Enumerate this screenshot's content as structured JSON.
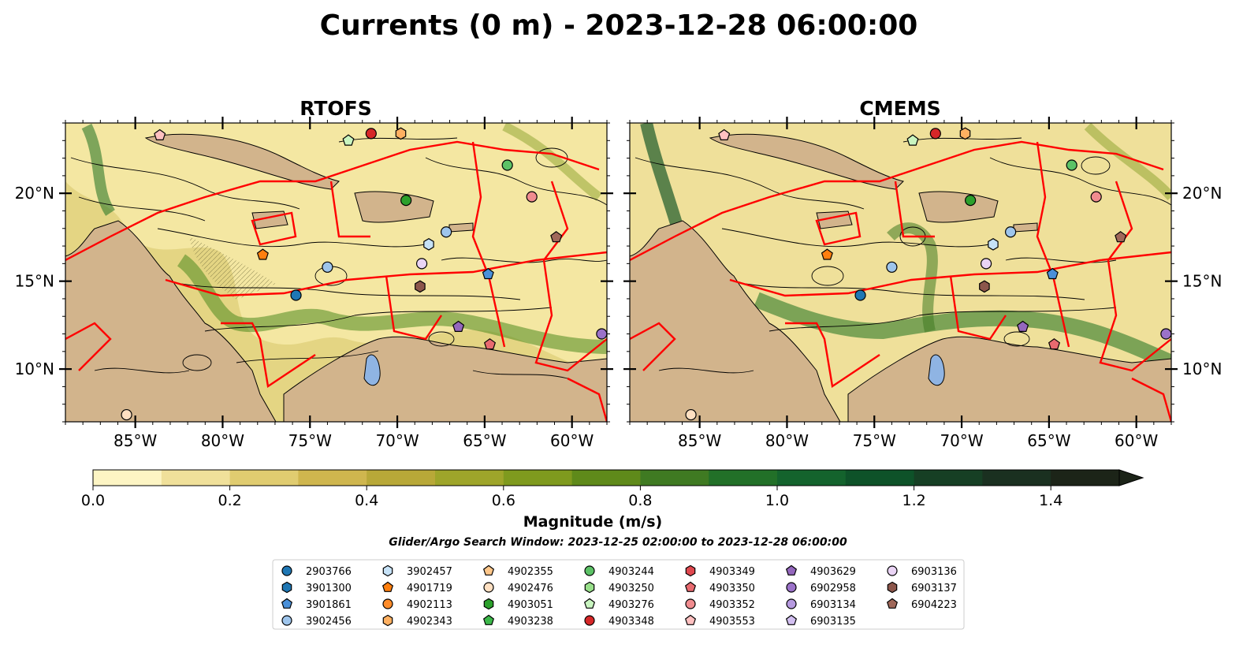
{
  "title": "Currents (0 m) - 2023-12-28 06:00:00",
  "panels": [
    {
      "title": "RTOFS"
    },
    {
      "title": "CMEMS"
    }
  ],
  "axes": {
    "x_ticks": [
      "85°W",
      "80°W",
      "75°W",
      "70°W",
      "65°W",
      "60°W"
    ],
    "y_ticks": [
      "10°N",
      "15°N",
      "20°N"
    ],
    "lon_range": [
      -89,
      -58
    ],
    "lat_range": [
      7,
      24
    ],
    "x_tick_values": [
      -85,
      -80,
      -75,
      -70,
      -65,
      -60
    ],
    "y_tick_values": [
      10,
      15,
      20
    ]
  },
  "colorbar": {
    "label": "Magnitude (m/s)",
    "ticks": [
      "0.0",
      "0.2",
      "0.4",
      "0.6",
      "0.8",
      "1.0",
      "1.2",
      "1.4"
    ],
    "tick_values": [
      0.0,
      0.2,
      0.4,
      0.6,
      0.8,
      1.0,
      1.2,
      1.4
    ],
    "range": [
      0.0,
      1.5
    ],
    "extend": "max",
    "colors": [
      "#fdf5c4",
      "#f0e09a",
      "#e0cc70",
      "#cfb64e",
      "#b8a838",
      "#9ea52a",
      "#7f9a1e",
      "#5f8a1a",
      "#3f7a22",
      "#227028",
      "#14632d",
      "#0e5229",
      "#163f24",
      "#1a3020",
      "#1c2418"
    ]
  },
  "search_window": "Glider/Argo Search Window: 2023-12-25 02:00:00 to 2023-12-28 06:00:00",
  "map_colors": {
    "land": "#d2b48c",
    "lakes": "#8fb4e3",
    "eez": "#ff0000",
    "streamlines": "#000000"
  },
  "chart_data": {
    "type": "scatter",
    "title": "Currents (0 m) - 2023-12-28 06:00:00",
    "xlabel": "",
    "ylabel": "",
    "xlim": [
      -89,
      -58
    ],
    "ylim": [
      7,
      24
    ],
    "grid": false,
    "legend_placement": "bottom-center",
    "series": [
      {
        "name": "2903766",
        "marker": "circle",
        "color": "#1f77b4",
        "x": [
          -75.8
        ],
        "y": [
          14.2
        ]
      },
      {
        "name": "3901300",
        "marker": "hexagon",
        "color": "#1f77b4",
        "x": [],
        "y": []
      },
      {
        "name": "3901861",
        "marker": "pentagon",
        "color": "#4a90d9",
        "x": [
          -64.8
        ],
        "y": [
          15.4
        ]
      },
      {
        "name": "3902456",
        "marker": "circle",
        "color": "#9ec5ec",
        "x": [
          -67.2
        ],
        "y": [
          17.8
        ]
      },
      {
        "name": "3902457",
        "marker": "hexagon",
        "color": "#c6e2f7",
        "x": [
          -68.2
        ],
        "y": [
          17.1
        ]
      },
      {
        "name": "4901719",
        "marker": "pentagon",
        "color": "#ff7f0e",
        "x": [
          -77.7
        ],
        "y": [
          16.5
        ]
      },
      {
        "name": "4902113",
        "marker": "circle",
        "color": "#ff8c2a",
        "x": [],
        "y": []
      },
      {
        "name": "4902343",
        "marker": "hexagon",
        "color": "#ffb061",
        "x": [
          -69.8
        ],
        "y": [
          23.4
        ]
      },
      {
        "name": "4902355",
        "marker": "pentagon",
        "color": "#ffc78a",
        "x": [],
        "y": []
      },
      {
        "name": "4902476",
        "marker": "circle",
        "color": "#ffe0c2",
        "x": [],
        "y": []
      },
      {
        "name": "4903051",
        "marker": "hexagon",
        "color": "#2ca02c",
        "x": [],
        "y": []
      },
      {
        "name": "4903238",
        "marker": "pentagon",
        "color": "#3cb84a",
        "x": [],
        "y": []
      },
      {
        "name": "4903244",
        "marker": "circle",
        "color": "#5cc266",
        "x": [
          -63.7
        ],
        "y": [
          21.6
        ]
      },
      {
        "name": "4903250",
        "marker": "hexagon",
        "color": "#98df8a",
        "x": [],
        "y": []
      },
      {
        "name": "4903276",
        "marker": "pentagon",
        "color": "#c9f5c0",
        "x": [
          -72.8
        ],
        "y": [
          23.0
        ]
      },
      {
        "name": "4903348",
        "marker": "circle",
        "color": "#d62728",
        "x": [
          -71.5
        ],
        "y": [
          23.4
        ]
      },
      {
        "name": "4903349",
        "marker": "hexagon",
        "color": "#e0484f",
        "x": [],
        "y": []
      },
      {
        "name": "4903350",
        "marker": "pentagon",
        "color": "#e86a6f",
        "x": [],
        "y": []
      },
      {
        "name": "4903352",
        "marker": "circle",
        "color": "#f08c8f",
        "x": [
          -62.3
        ],
        "y": [
          19.8
        ]
      },
      {
        "name": "4903553",
        "marker": "pentagon",
        "color": "#ffc0c0",
        "x": [],
        "y": []
      },
      {
        "name": "4903629",
        "marker": "pentagon",
        "color": "#9467bd",
        "x": [
          -66.5
        ],
        "y": [
          12.4
        ]
      },
      {
        "name": "6902958",
        "marker": "circle",
        "color": "#9b72c9",
        "x": [
          -58.3
        ],
        "y": [
          12.0
        ]
      },
      {
        "name": "6903134",
        "marker": "circle",
        "color": "#b69ae0",
        "x": [],
        "y": []
      },
      {
        "name": "6903135",
        "marker": "pentagon",
        "color": "#d2bff0",
        "x": [],
        "y": []
      },
      {
        "name": "6903136",
        "marker": "circle",
        "color": "#ead4f5",
        "x": [
          -68.6
        ],
        "y": [
          16.0
        ]
      },
      {
        "name": "6903137",
        "marker": "hexagon",
        "color": "#8c564b",
        "x": [
          -68.7
        ],
        "y": [
          14.7
        ]
      },
      {
        "name": "6904223",
        "marker": "pentagon",
        "color": "#a0685a",
        "x": [
          -60.9
        ],
        "y": [
          17.5
        ]
      }
    ],
    "extra_markers_unlabelled_position_only": [
      {
        "color": "#2ca02c",
        "marker": "circle",
        "x": -69.5,
        "y": 19.6
      },
      {
        "color": "#ffe0c2",
        "marker": "circle",
        "x": -85.5,
        "y": 7.4
      },
      {
        "color": "#ffc0c0",
        "marker": "pentagon",
        "x": -83.6,
        "y": 23.3
      },
      {
        "color": "#9ec5ec",
        "marker": "circle",
        "x": -74.0,
        "y": 15.8
      },
      {
        "color": "#e86a6f",
        "marker": "pentagon",
        "x": -64.7,
        "y": 11.4
      }
    ]
  }
}
